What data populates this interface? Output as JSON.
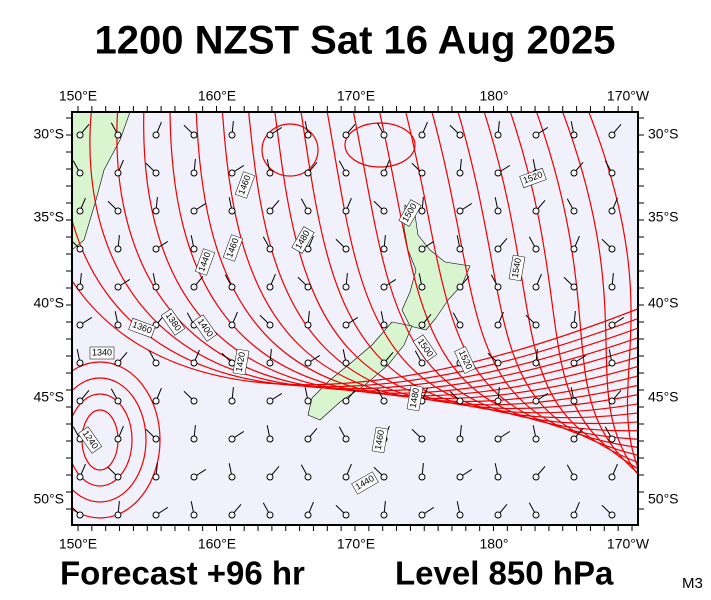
{
  "header": {
    "title": "1200 NZST Sat 16 Aug 2025"
  },
  "map": {
    "lon_labels": [
      "150°E",
      "160°E",
      "170°E",
      "180°",
      "170°W"
    ],
    "lat_labels": [
      "30°S",
      "35°S",
      "40°S",
      "45°S",
      "50°S"
    ],
    "contour_labels": [
      "1460",
      "1480",
      "1460",
      "1440",
      "1520",
      "1500",
      "1540",
      "1400",
      "1380",
      "1360",
      "1340",
      "1420",
      "1500",
      "1520",
      "1480",
      "1460",
      "1440",
      "1240"
    ]
  },
  "footer": {
    "forecast": "Forecast +96 hr",
    "level": "Level 850 hPa",
    "model": "M3"
  }
}
